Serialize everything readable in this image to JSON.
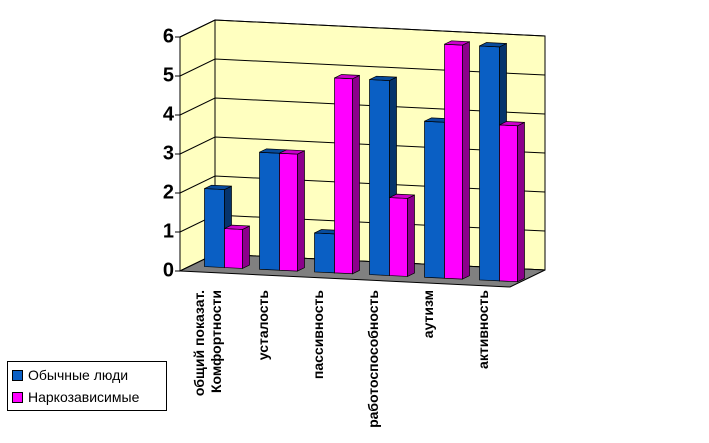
{
  "chart_data": {
    "type": "bar3d",
    "categories": [
      "общий показат. Комфортности",
      "усталость",
      "пассивность",
      "работоспособность",
      "аутизм",
      "активность"
    ],
    "series": [
      {
        "name": "Обычные люди",
        "color": "#0a5fc4",
        "values": [
          2,
          3,
          1,
          5,
          4,
          6
        ]
      },
      {
        "name": "Наркозависимые",
        "color": "#ff00ff",
        "values": [
          1,
          3,
          5,
          2,
          6,
          4
        ]
      }
    ],
    "ylim": [
      0,
      6
    ],
    "yticks": [
      0,
      1,
      2,
      3,
      4,
      5,
      6
    ],
    "grid": true,
    "wall_color": "#ffffc0",
    "floor_color": "#808080",
    "legend": "bottom-left"
  }
}
